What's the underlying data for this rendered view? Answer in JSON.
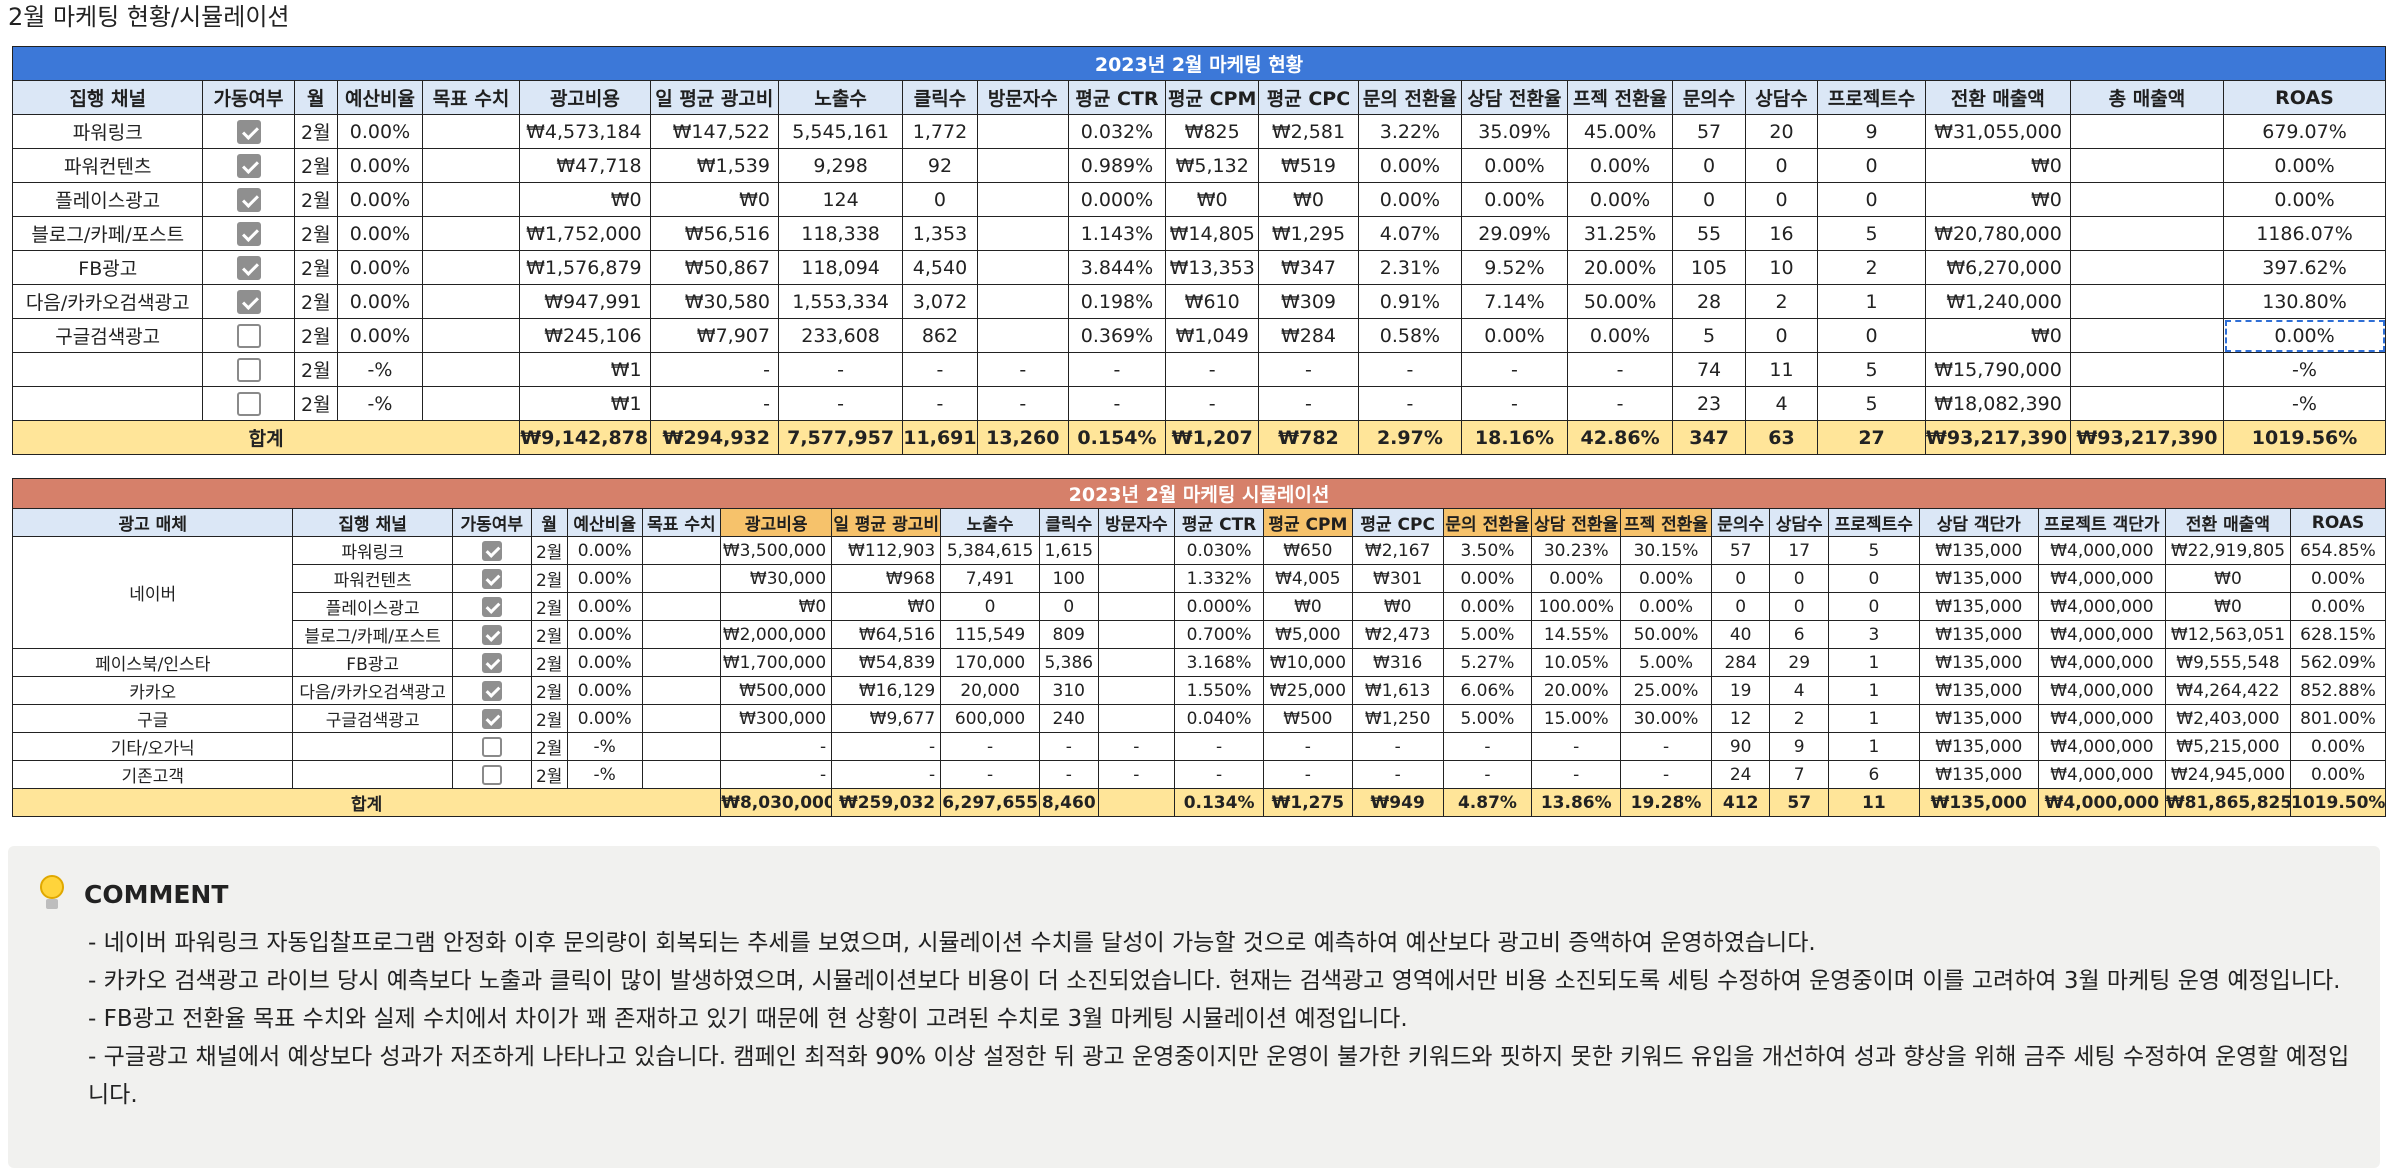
{
  "page_title": "2월 마케팅 현황/시뮬레이션",
  "table1": {
    "banner": "2023년 2월 마케팅 현황",
    "headers": [
      "집행 채널",
      "가동여부",
      "월",
      "예산비율",
      "목표 수치",
      "광고비용",
      "일 평균 광고비",
      "노출수",
      "클릭수",
      "방문자수",
      "평균 CTR",
      "평균 CPM",
      "평균 CPC",
      "문의 전환율",
      "상담 전환율",
      "프젝 전환율",
      "문의수",
      "상담수",
      "프로젝트수",
      "전환 매출액",
      "총 매출액",
      "ROAS"
    ],
    "rows": [
      {
        "cells": [
          "파워링크",
          "",
          "2월",
          "0.00%",
          "",
          "₩4,573,184",
          "₩147,522",
          "5,545,161",
          "1,772",
          "",
          "0.032%",
          "₩825",
          "₩2,581",
          "3.22%",
          "35.09%",
          "45.00%",
          "57",
          "20",
          "9",
          "₩31,055,000",
          "",
          "679.07%"
        ],
        "checked": true
      },
      {
        "cells": [
          "파워컨텐츠",
          "",
          "2월",
          "0.00%",
          "",
          "₩47,718",
          "₩1,539",
          "9,298",
          "92",
          "",
          "0.989%",
          "₩5,132",
          "₩519",
          "0.00%",
          "0.00%",
          "0.00%",
          "0",
          "0",
          "0",
          "₩0",
          "",
          "0.00%"
        ],
        "checked": true
      },
      {
        "cells": [
          "플레이스광고",
          "",
          "2월",
          "0.00%",
          "",
          "₩0",
          "₩0",
          "124",
          "0",
          "",
          "0.000%",
          "₩0",
          "₩0",
          "0.00%",
          "0.00%",
          "0.00%",
          "0",
          "0",
          "0",
          "₩0",
          "",
          "0.00%"
        ],
        "checked": true
      },
      {
        "cells": [
          "블로그/카페/포스트",
          "",
          "2월",
          "0.00%",
          "",
          "₩1,752,000",
          "₩56,516",
          "118,338",
          "1,353",
          "",
          "1.143%",
          "₩14,805",
          "₩1,295",
          "4.07%",
          "29.09%",
          "31.25%",
          "55",
          "16",
          "5",
          "₩20,780,000",
          "",
          "1186.07%"
        ],
        "checked": true
      },
      {
        "cells": [
          "FB광고",
          "",
          "2월",
          "0.00%",
          "",
          "₩1,576,879",
          "₩50,867",
          "118,094",
          "4,540",
          "",
          "3.844%",
          "₩13,353",
          "₩347",
          "2.31%",
          "9.52%",
          "20.00%",
          "105",
          "10",
          "2",
          "₩6,270,000",
          "",
          "397.62%"
        ],
        "checked": true
      },
      {
        "cells": [
          "다음/카카오검색광고",
          "",
          "2월",
          "0.00%",
          "",
          "₩947,991",
          "₩30,580",
          "1,553,334",
          "3,072",
          "",
          "0.198%",
          "₩610",
          "₩309",
          "0.91%",
          "7.14%",
          "50.00%",
          "28",
          "2",
          "1",
          "₩1,240,000",
          "",
          "130.80%"
        ],
        "checked": true
      },
      {
        "cells": [
          "구글검색광고",
          "",
          "2월",
          "0.00%",
          "",
          "₩245,106",
          "₩7,907",
          "233,608",
          "862",
          "",
          "0.369%",
          "₩1,049",
          "₩284",
          "0.58%",
          "0.00%",
          "0.00%",
          "5",
          "0",
          "0",
          "₩0",
          "",
          "0.00%"
        ],
        "checked": false
      },
      {
        "cells": [
          "",
          "",
          "2월",
          "-%",
          "",
          "₩1",
          "-",
          "-",
          "-",
          "-",
          "-",
          "-",
          "-",
          "-",
          "-",
          "-",
          "74",
          "11",
          "5",
          "₩15,790,000",
          "",
          "-%"
        ],
        "checked": false
      },
      {
        "cells": [
          "",
          "",
          "2월",
          "-%",
          "",
          "₩1",
          "-",
          "-",
          "-",
          "-",
          "-",
          "-",
          "-",
          "-",
          "-",
          "-",
          "23",
          "4",
          "5",
          "₩18,082,390",
          "",
          "-%"
        ],
        "checked": false
      }
    ],
    "total": {
      "label": "합계",
      "cells": [
        "₩9,142,878",
        "₩294,932",
        "7,577,957",
        "11,691",
        "13,260",
        "0.154%",
        "₩1,207",
        "₩782",
        "2.97%",
        "18.16%",
        "42.86%",
        "347",
        "63",
        "27",
        "₩93,217,390",
        "₩93,217,390",
        "1019.56%"
      ]
    }
  },
  "table2": {
    "banner": "2023년 2월 마케팅 시뮬레이션",
    "headers": [
      "광고 매체",
      "집행 채널",
      "가동여부",
      "월",
      "예산비율",
      "목표 수치",
      "광고비용",
      "일 평균 광고비",
      "노출수",
      "클릭수",
      "방문자수",
      "평균 CTR",
      "평균 CPM",
      "평균 CPC",
      "문의 전환율",
      "상담 전환율",
      "프젝 전환율",
      "문의수",
      "상담수",
      "프로젝트수",
      "상담 객단가",
      "프로젝트 객단가",
      "전환 매출액",
      "ROAS"
    ],
    "rows": [
      {
        "media": "네이버",
        "cells": [
          "파워링크",
          "",
          "2월",
          "0.00%",
          "",
          "₩3,500,000",
          "₩112,903",
          "5,384,615",
          "1,615",
          "",
          "0.030%",
          "₩650",
          "₩2,167",
          "3.50%",
          "30.23%",
          "30.15%",
          "57",
          "17",
          "5",
          "₩135,000",
          "₩4,000,000",
          "₩22,919,805",
          "654.85%"
        ],
        "checked": true
      },
      {
        "media": "",
        "cells": [
          "파워컨텐츠",
          "",
          "2월",
          "0.00%",
          "",
          "₩30,000",
          "₩968",
          "7,491",
          "100",
          "",
          "1.332%",
          "₩4,005",
          "₩301",
          "0.00%",
          "0.00%",
          "0.00%",
          "0",
          "0",
          "0",
          "₩135,000",
          "₩4,000,000",
          "₩0",
          "0.00%"
        ],
        "checked": true
      },
      {
        "media": "",
        "cells": [
          "플레이스광고",
          "",
          "2월",
          "0.00%",
          "",
          "₩0",
          "₩0",
          "0",
          "0",
          "",
          "0.000%",
          "₩0",
          "₩0",
          "0.00%",
          "100.00%",
          "0.00%",
          "0",
          "0",
          "0",
          "₩135,000",
          "₩4,000,000",
          "₩0",
          "0.00%"
        ],
        "checked": true
      },
      {
        "media": "",
        "cells": [
          "블로그/카페/포스트",
          "",
          "2월",
          "0.00%",
          "",
          "₩2,000,000",
          "₩64,516",
          "115,549",
          "809",
          "",
          "0.700%",
          "₩5,000",
          "₩2,473",
          "5.00%",
          "14.55%",
          "50.00%",
          "40",
          "6",
          "3",
          "₩135,000",
          "₩4,000,000",
          "₩12,563,051",
          "628.15%"
        ],
        "checked": true
      },
      {
        "media": "페이스북/인스타",
        "cells": [
          "FB광고",
          "",
          "2월",
          "0.00%",
          "",
          "₩1,700,000",
          "₩54,839",
          "170,000",
          "5,386",
          "",
          "3.168%",
          "₩10,000",
          "₩316",
          "5.27%",
          "10.05%",
          "5.00%",
          "284",
          "29",
          "1",
          "₩135,000",
          "₩4,000,000",
          "₩9,555,548",
          "562.09%"
        ],
        "checked": true
      },
      {
        "media": "카카오",
        "cells": [
          "다음/카카오검색광고",
          "",
          "2월",
          "0.00%",
          "",
          "₩500,000",
          "₩16,129",
          "20,000",
          "310",
          "",
          "1.550%",
          "₩25,000",
          "₩1,613",
          "6.06%",
          "20.00%",
          "25.00%",
          "19",
          "4",
          "1",
          "₩135,000",
          "₩4,000,000",
          "₩4,264,422",
          "852.88%"
        ],
        "checked": true
      },
      {
        "media": "구글",
        "cells": [
          "구글검색광고",
          "",
          "2월",
          "0.00%",
          "",
          "₩300,000",
          "₩9,677",
          "600,000",
          "240",
          "",
          "0.040%",
          "₩500",
          "₩1,250",
          "5.00%",
          "15.00%",
          "30.00%",
          "12",
          "2",
          "1",
          "₩135,000",
          "₩4,000,000",
          "₩2,403,000",
          "801.00%"
        ],
        "checked": true
      },
      {
        "media": "기타/오가닉",
        "cells": [
          "",
          "",
          "2월",
          "-%",
          "",
          "-",
          "-",
          "-",
          "-",
          "-",
          "-",
          "-",
          "-",
          "-",
          "-",
          "-",
          "90",
          "9",
          "1",
          "₩135,000",
          "₩4,000,000",
          "₩5,215,000",
          "0.00%"
        ],
        "checked": false
      },
      {
        "media": "기존고객",
        "cells": [
          "",
          "",
          "2월",
          "-%",
          "",
          "-",
          "-",
          "-",
          "-",
          "-",
          "-",
          "-",
          "-",
          "-",
          "-",
          "-",
          "24",
          "7",
          "6",
          "₩135,000",
          "₩4,000,000",
          "₩24,945,000",
          "0.00%"
        ],
        "checked": false
      }
    ],
    "total": {
      "label": "합계",
      "cells": [
        "₩8,030,000",
        "₩259,032",
        "6,297,655",
        "8,460",
        "",
        "0.134%",
        "₩1,275",
        "₩949",
        "4.87%",
        "13.86%",
        "19.28%",
        "412",
        "57",
        "11",
        "₩135,000",
        "₩4,000,000",
        "₩81,865,825",
        "1019.50%"
      ]
    }
  },
  "comment": {
    "icon": "lightbulb-icon",
    "title": "COMMENT",
    "lines": [
      "- 네이버 파워링크 자동입찰프로그램 안정화 이후 문의량이 회복되는 추세를 보였으며, 시뮬레이션 수치를 달성이 가능할 것으로 예측하여 예산보다 광고비 증액하여 운영하였습니다.",
      "- 카카오 검색광고 라이브 당시 예측보다 노출과 클릭이 많이 발생하였으며, 시뮬레이션보다 비용이 더 소진되었습니다. 현재는 검색광고 영역에서만 비용 소진되도록 세팅 수정하여 운영중이며 이를 고려하여 3월 마케팅 운영 예정입니다.",
      "- FB광고 전환율 목표 수치와 실제 수치에서 차이가 꽤 존재하고 있기 때문에 현 상황이 고려된 수치로 3월 마케팅 시뮬레이션 예정입니다.",
      "- 구글광고 채널에서 예상보다 성과가 저조하게 나타나고 있습니다. 캠페인 최적화 90% 이상 설정한 뒤 광고 운영중이지만 운영이 불가한 키워드와 핏하지 못한 키워드 유입을 개선하여 성과 향상을 위해 금주 세팅 수정하여 운영할 예정입니다."
    ]
  }
}
